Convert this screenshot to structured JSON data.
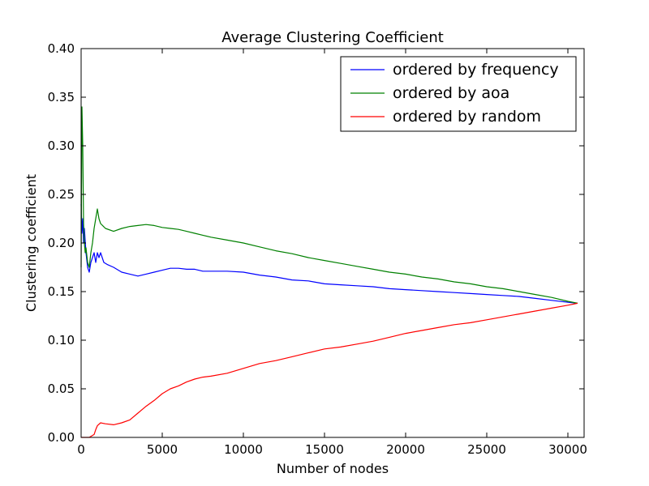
{
  "chart_data": {
    "type": "line",
    "title": "Average Clustering Coefficient",
    "xlabel": "Number of nodes",
    "ylabel": "Clustering coefficient",
    "xlim": [
      0,
      31000
    ],
    "ylim": [
      0,
      0.4
    ],
    "xticks": [
      0,
      5000,
      10000,
      15000,
      20000,
      25000,
      30000
    ],
    "xtick_labels": [
      "0",
      "5000",
      "10000",
      "15000",
      "20000",
      "25000",
      "30000"
    ],
    "yticks": [
      0,
      0.05,
      0.1,
      0.15,
      0.2,
      0.25,
      0.3,
      0.35,
      0.4
    ],
    "ytick_labels": [
      "0.00",
      "0.05",
      "0.10",
      "0.15",
      "0.20",
      "0.25",
      "0.30",
      "0.35",
      "0.40"
    ],
    "grid": false,
    "legend_position": "top-right",
    "series": [
      {
        "name": "ordered by frequency",
        "color": "#0000ff",
        "x": [
          0,
          50,
          100,
          150,
          200,
          300,
          400,
          500,
          600,
          700,
          800,
          900,
          1000,
          1100,
          1200,
          1400,
          1600,
          2000,
          2500,
          3000,
          3500,
          4000,
          4500,
          5000,
          5500,
          6000,
          6500,
          7000,
          7500,
          8000,
          9000,
          10000,
          11000,
          12000,
          13000,
          14000,
          15000,
          16000,
          17000,
          18000,
          19000,
          20000,
          21000,
          22000,
          23000,
          24000,
          25000,
          26000,
          27000,
          28000,
          29000,
          30000,
          30600
        ],
        "y": [
          0.24,
          0.21,
          0.225,
          0.2,
          0.215,
          0.19,
          0.175,
          0.17,
          0.18,
          0.185,
          0.19,
          0.18,
          0.19,
          0.185,
          0.19,
          0.18,
          0.178,
          0.175,
          0.17,
          0.168,
          0.166,
          0.168,
          0.17,
          0.172,
          0.174,
          0.174,
          0.173,
          0.173,
          0.171,
          0.171,
          0.171,
          0.17,
          0.167,
          0.165,
          0.162,
          0.161,
          0.158,
          0.157,
          0.156,
          0.155,
          0.153,
          0.152,
          0.151,
          0.15,
          0.149,
          0.148,
          0.147,
          0.146,
          0.145,
          0.143,
          0.141,
          0.139,
          0.138
        ]
      },
      {
        "name": "ordered by aoa",
        "color": "#008000",
        "x": [
          0,
          50,
          100,
          150,
          200,
          250,
          300,
          400,
          500,
          600,
          700,
          800,
          900,
          1000,
          1100,
          1200,
          1500,
          2000,
          2500,
          3000,
          3500,
          4000,
          4500,
          5000,
          5500,
          6000,
          6500,
          7000,
          7500,
          8000,
          9000,
          10000,
          11000,
          12000,
          13000,
          14000,
          15000,
          16000,
          17000,
          18000,
          19000,
          20000,
          21000,
          22000,
          23000,
          24000,
          25000,
          26000,
          27000,
          28000,
          29000,
          30000,
          30600
        ],
        "y": [
          0.175,
          0.34,
          0.3,
          0.22,
          0.2,
          0.19,
          0.195,
          0.18,
          0.175,
          0.19,
          0.2,
          0.215,
          0.225,
          0.235,
          0.225,
          0.22,
          0.215,
          0.212,
          0.215,
          0.217,
          0.218,
          0.219,
          0.218,
          0.216,
          0.215,
          0.214,
          0.212,
          0.21,
          0.208,
          0.206,
          0.203,
          0.2,
          0.196,
          0.192,
          0.189,
          0.185,
          0.182,
          0.179,
          0.176,
          0.173,
          0.17,
          0.168,
          0.165,
          0.163,
          0.16,
          0.158,
          0.155,
          0.153,
          0.15,
          0.147,
          0.144,
          0.14,
          0.138
        ]
      },
      {
        "name": "ordered by random",
        "color": "#ff0000",
        "x": [
          0,
          500,
          800,
          900,
          1000,
          1200,
          1500,
          2000,
          2500,
          3000,
          3500,
          4000,
          4500,
          5000,
          5500,
          6000,
          6500,
          7000,
          7500,
          8000,
          9000,
          10000,
          11000,
          12000,
          13000,
          14000,
          15000,
          16000,
          17000,
          18000,
          19000,
          20000,
          21000,
          22000,
          23000,
          24000,
          25000,
          26000,
          27000,
          28000,
          29000,
          30000,
          30600
        ],
        "y": [
          0.0,
          0.0,
          0.003,
          0.008,
          0.012,
          0.015,
          0.014,
          0.013,
          0.015,
          0.018,
          0.025,
          0.032,
          0.038,
          0.045,
          0.05,
          0.053,
          0.057,
          0.06,
          0.062,
          0.063,
          0.066,
          0.071,
          0.076,
          0.079,
          0.083,
          0.087,
          0.091,
          0.093,
          0.096,
          0.099,
          0.103,
          0.107,
          0.11,
          0.113,
          0.116,
          0.118,
          0.121,
          0.124,
          0.127,
          0.13,
          0.133,
          0.136,
          0.138
        ]
      }
    ]
  }
}
